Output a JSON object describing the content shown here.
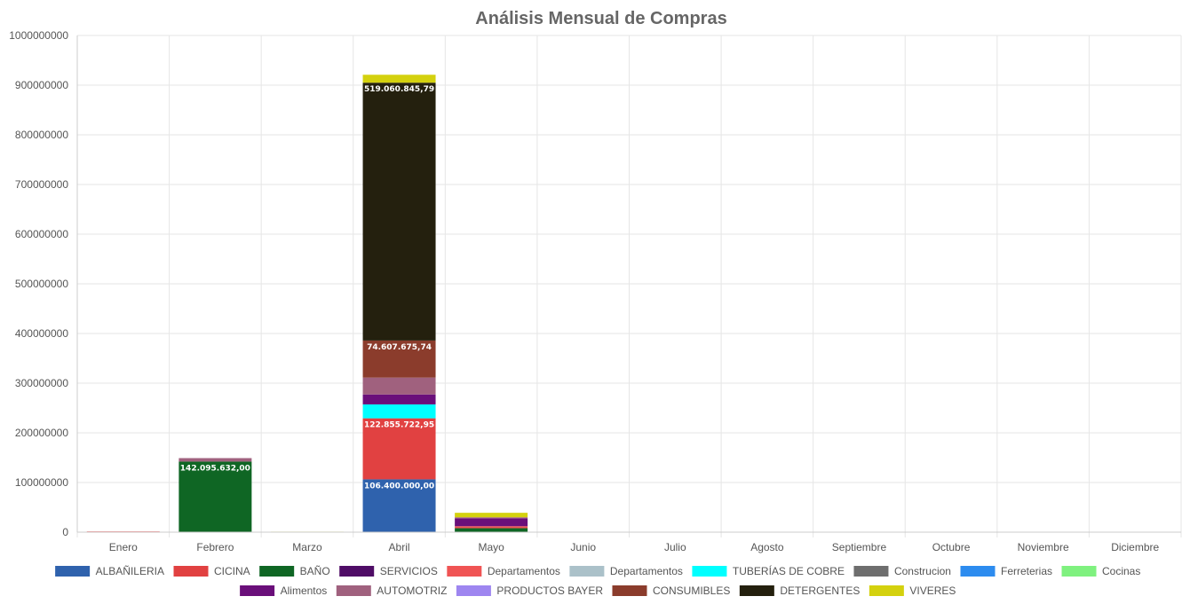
{
  "chart_data": {
    "type": "bar",
    "stacked": true,
    "title": "Análisis Mensual de Compras",
    "xlabel": "",
    "ylabel": "",
    "ylim": [
      0,
      1000000000
    ],
    "y_ticks": [
      "0",
      "100000000",
      "200000000",
      "300000000",
      "400000000",
      "500000000",
      "600000000",
      "700000000",
      "800000000",
      "900000000",
      "1000000000"
    ],
    "grid": true,
    "legend_position": "bottom",
    "categories": [
      "Enero",
      "Febrero",
      "Marzo",
      "Abril",
      "Mayo",
      "Junio",
      "Julio",
      "Agosto",
      "Septiembre",
      "Octubre",
      "Noviembre",
      "Diciembre"
    ],
    "series": [
      {
        "name": "ALBAÑILERIA",
        "color": "#2f62ad",
        "values": [
          0,
          0,
          0,
          106400000,
          0,
          0,
          0,
          0,
          0,
          0,
          0,
          0
        ]
      },
      {
        "name": "CICINA",
        "color": "#e14141",
        "values": [
          0,
          0,
          0,
          122855722.95,
          0,
          0,
          0,
          0,
          0,
          0,
          0,
          0
        ]
      },
      {
        "name": "BAÑO",
        "color": "#0f6624",
        "values": [
          0,
          142095632,
          0,
          0,
          8000000,
          0,
          0,
          0,
          0,
          0,
          0,
          0
        ]
      },
      {
        "name": "SERVICIOS",
        "color": "#4f0d66",
        "values": [
          0,
          0,
          0,
          0,
          0,
          0,
          0,
          0,
          0,
          0,
          0,
          0
        ]
      },
      {
        "name": "Departamentos",
        "color": "#f05454",
        "values": [
          1500000,
          0,
          0,
          0,
          4000000,
          0,
          0,
          0,
          0,
          0,
          0,
          0
        ]
      },
      {
        "name": "Departamentos",
        "color": "#abc1c9",
        "values": [
          0,
          0,
          0,
          0,
          0,
          0,
          0,
          0,
          0,
          0,
          0,
          0
        ]
      },
      {
        "name": "TUBERÍAS DE COBRE",
        "color": "#00ffff",
        "values": [
          0,
          0,
          0,
          28000000,
          0,
          0,
          0,
          0,
          0,
          0,
          0,
          0
        ]
      },
      {
        "name": "Construcion",
        "color": "#6e6e6e",
        "values": [
          0,
          0,
          0,
          0,
          0,
          0,
          0,
          0,
          0,
          0,
          0,
          0
        ]
      },
      {
        "name": "Ferreterias",
        "color": "#2d8cef",
        "values": [
          0,
          0,
          0,
          0,
          0,
          0,
          0,
          0,
          0,
          0,
          0,
          0
        ]
      },
      {
        "name": "Cocinas",
        "color": "#7ff17f",
        "values": [
          0,
          0,
          0,
          0,
          0,
          0,
          0,
          0,
          0,
          0,
          0,
          0
        ]
      },
      {
        "name": "Alimentos",
        "color": "#6a0f7a",
        "values": [
          0,
          0,
          0,
          20000000,
          16000000,
          0,
          0,
          0,
          0,
          0,
          0,
          0
        ]
      },
      {
        "name": "AUTOMOTRIZ",
        "color": "#a0617e",
        "values": [
          0,
          7000000,
          0,
          34000000,
          2000000,
          0,
          0,
          0,
          0,
          0,
          0,
          0
        ]
      },
      {
        "name": "PRODUCTOS BAYER",
        "color": "#9e86f0",
        "values": [
          0,
          0,
          0,
          0,
          0,
          0,
          0,
          0,
          0,
          0,
          0,
          0
        ]
      },
      {
        "name": "CONSUMIBLES",
        "color": "#8b3c2c",
        "values": [
          0,
          0,
          0,
          74607675.74,
          0,
          0,
          0,
          0,
          0,
          0,
          0,
          0
        ]
      },
      {
        "name": "DETERGENTES",
        "color": "#24200e",
        "values": [
          0,
          0,
          0,
          519060845.79,
          0,
          0,
          0,
          0,
          0,
          0,
          0,
          0
        ]
      },
      {
        "name": "VIVERES",
        "color": "#d4d10e",
        "values": [
          0,
          0,
          1000000,
          16000000,
          9000000,
          0,
          0,
          0,
          0,
          0,
          0,
          0
        ]
      }
    ],
    "data_labels": [
      {
        "text": "142.095.632,00",
        "category": "Febrero",
        "series": "BAÑO"
      },
      {
        "text": "106.400.000,00",
        "category": "Abril",
        "series": "ALBAÑILERIA"
      },
      {
        "text": "122.855.722,95",
        "category": "Abril",
        "series": "CICINA"
      },
      {
        "text": "74.607.675,74",
        "category": "Abril",
        "series": "CONSUMIBLES"
      },
      {
        "text": "519.060.845,79",
        "category": "Abril",
        "series": "DETERGENTES"
      }
    ]
  }
}
